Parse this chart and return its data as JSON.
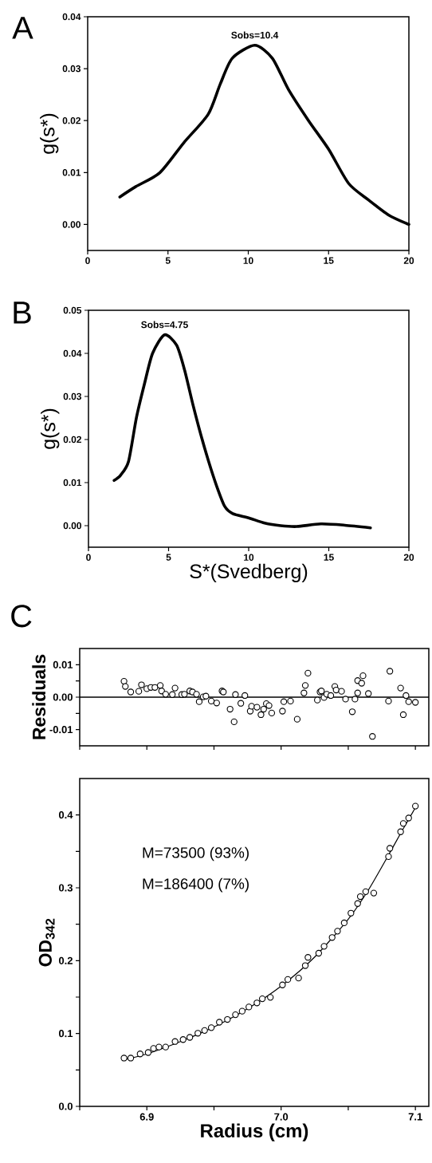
{
  "chart_data": [
    {
      "type": "line",
      "title": "A",
      "ylabel": "g(s*)",
      "xlim": [
        0,
        20
      ],
      "ylim": [
        -0.005,
        0.04
      ],
      "xticks": [
        0,
        5,
        10,
        15,
        20
      ],
      "yticks": [
        {
          "value": 0,
          "label": "0.00"
        },
        0.01,
        0.02,
        0.03,
        0.04
      ],
      "series": [
        {
          "color": "#000000",
          "x": [
            2,
            3,
            4.5,
            6,
            7.5,
            8.25,
            9,
            10.4,
            11.5,
            12.5,
            13.75,
            15,
            16.25,
            17.5,
            18.75,
            20
          ],
          "values": [
            0.0053,
            0.0073,
            0.01,
            0.0158,
            0.0212,
            0.027,
            0.032,
            0.0345,
            0.032,
            0.026,
            0.02,
            0.0145,
            0.0079,
            0.0047,
            0.0018,
            0.0
          ]
        }
      ],
      "annotations": [
        {
          "text": "Sobs=10.4",
          "x": 10.4,
          "y": 0.0345
        }
      ]
    },
    {
      "type": "line",
      "title": "B",
      "xlabel": "S*(Svedberg)",
      "ylabel": "g(s*)",
      "xlim": [
        0,
        20
      ],
      "ylim": [
        -0.005,
        0.05
      ],
      "xticks": [
        0,
        5,
        10,
        15,
        20
      ],
      "yticks": [
        {
          "value": 0,
          "label": "0.00"
        },
        0.01,
        0.02,
        0.03,
        0.04,
        0.05
      ],
      "series": [
        {
          "color": "#000000",
          "x": [
            1.6,
            2,
            2.5,
            3,
            3.5,
            4,
            4.75,
            5.5,
            6,
            6.5,
            7,
            7.5,
            8,
            8.5,
            9,
            10,
            11,
            12,
            13,
            14.5,
            16,
            17.6
          ],
          "values": [
            0.0105,
            0.0117,
            0.0149,
            0.0252,
            0.033,
            0.04,
            0.0443,
            0.0419,
            0.0361,
            0.0284,
            0.0213,
            0.0149,
            0.0092,
            0.0045,
            0.0028,
            0.0018,
            0.0006,
            0.0,
            -0.0002,
            0.0004,
            0.0001,
            -0.0005
          ]
        }
      ],
      "annotations": [
        {
          "text": "Sobs=4.75",
          "x": 4.75,
          "y": 0.0443
        }
      ]
    },
    {
      "type": "scatter",
      "title": "C",
      "ylabel": "Residuals",
      "marker": "circle",
      "tick_labels": "y",
      "xlim": [
        6.85,
        7.11
      ],
      "ylim": [
        -0.015,
        0.015
      ],
      "xticks": [
        6.85,
        6.9,
        6.95,
        7.0,
        7.05,
        7.1
      ],
      "yticks": [
        -0.01,
        {
          "value": -0.005,
          "label": null
        },
        {
          "value": 0,
          "label": "0.00"
        },
        {
          "value": 0.005,
          "label": null
        },
        0.01
      ],
      "ref_lines": [
        {
          "axis": "y",
          "value": 0
        }
      ],
      "series": [
        {
          "color": "#000000",
          "x": [
            6.883,
            6.884,
            6.888,
            6.894,
            6.896,
            6.9,
            6.903,
            6.906,
            6.91,
            6.911,
            6.914,
            6.919,
            6.921,
            6.926,
            6.928,
            6.932,
            6.934,
            6.937,
            6.939,
            6.942,
            6.944,
            6.948,
            6.952,
            6.956,
            6.957,
            6.962,
            6.965,
            6.966,
            6.97,
            6.973,
            6.977,
            6.978,
            6.982,
            6.985,
            6.987,
            6.989,
            6.991,
            6.993,
            7.001,
            7.002,
            7.007,
            7.012,
            7.017,
            7.018,
            7.02,
            7.027,
            7.029,
            7.03,
            7.032,
            7.034,
            7.037,
            7.04,
            7.041,
            7.045,
            7.048,
            7.053,
            7.055,
            7.057,
            7.057,
            7.06,
            7.061,
            7.065,
            7.068,
            7.081,
            7.08,
            7.089,
            7.091,
            7.093,
            7.095,
            7.1
          ],
          "values": [
            0.0049,
            0.0033,
            0.0016,
            0.0018,
            0.0038,
            0.0026,
            0.003,
            0.003,
            0.0036,
            0.0019,
            0.0009,
            0.0008,
            0.0028,
            0.0008,
            0.0009,
            0.0019,
            0.0016,
            0.0009,
            -0.0014,
            0.0001,
            0.0003,
            -0.0012,
            -0.0018,
            0.0019,
            0.0016,
            -0.0037,
            -0.0076,
            0.0008,
            -0.0019,
            0.0005,
            -0.0043,
            -0.0028,
            -0.0031,
            -0.0054,
            -0.0037,
            -0.002,
            -0.0026,
            -0.0049,
            -0.0043,
            -0.0014,
            -0.0012,
            -0.0068,
            0.0013,
            0.0036,
            0.0074,
            -0.0009,
            0.0016,
            0.0019,
            -0.0001,
            0.0009,
            0.0005,
            0.0033,
            0.0022,
            0.0018,
            -0.0006,
            -0.0045,
            -0.0006,
            0.0013,
            0.0051,
            0.0043,
            0.0066,
            0.0011,
            -0.0121,
            0.008,
            -0.0012,
            0.0028,
            -0.0054,
            0.0005,
            -0.0014,
            -0.0016
          ]
        }
      ]
    },
    {
      "type": "scatter",
      "xlabel": "Radius (cm)",
      "ylabel": "OD$_{342}$",
      "marker": "circle",
      "xlim": [
        6.85,
        7.11
      ],
      "ylim": [
        0,
        0.45
      ],
      "xticks": [
        {
          "value": 6.85,
          "label": null
        },
        6.9,
        {
          "value": 6.95,
          "label": null
        },
        {
          "value": 7.0,
          "label": "7.0"
        },
        {
          "value": 7.05,
          "label": null
        },
        7.1
      ],
      "yticks": [
        {
          "value": 0,
          "label": "0.0"
        },
        {
          "value": 0.05,
          "label": null
        },
        0.1,
        {
          "value": 0.15,
          "label": null
        },
        0.2,
        {
          "value": 0.25,
          "label": null
        },
        0.3,
        {
          "value": 0.35,
          "label": null
        },
        0.4
      ],
      "annotations": [
        "M=73500 (93%)",
        "M=186400 (7%)"
      ],
      "series": [
        {
          "color": "#000000",
          "x": [
            6.883,
            6.888,
            6.895,
            6.901,
            6.905,
            6.909,
            6.914,
            6.921,
            6.927,
            6.932,
            6.938,
            6.943,
            6.948,
            6.954,
            6.96,
            6.966,
            6.971,
            6.976,
            6.982,
            6.986,
            6.992,
            7.001,
            7.005,
            7.013,
            7.018,
            7.02,
            7.028,
            7.032,
            7.038,
            7.042,
            7.047,
            7.052,
            7.057,
            7.059,
            7.063,
            7.069,
            7.08,
            7.081,
            7.089,
            7.091,
            7.095,
            7.1
          ],
          "values": [
            0.0663,
            0.0663,
            0.072,
            0.0739,
            0.0795,
            0.0814,
            0.0814,
            0.089,
            0.0917,
            0.0947,
            0.1004,
            0.1042,
            0.108,
            0.1155,
            0.1193,
            0.1258,
            0.1307,
            0.1364,
            0.142,
            0.1477,
            0.1496,
            0.1667,
            0.1742,
            0.1761,
            0.1932,
            0.2045,
            0.2102,
            0.2197,
            0.2318,
            0.2405,
            0.2519,
            0.2652,
            0.2784,
            0.2879,
            0.2947,
            0.2928,
            0.3428,
            0.3542,
            0.3769,
            0.3883,
            0.3958,
            0.4121
          ]
        },
        {
          "type": "line",
          "marker": "none",
          "color": "#000000",
          "x": [
            6.883,
            6.9,
            6.925,
            6.95,
            6.975,
            7.0,
            7.025,
            7.05,
            7.065,
            7.08,
            7.09,
            7.1
          ],
          "values": [
            0.064,
            0.072,
            0.089,
            0.109,
            0.134,
            0.165,
            0.205,
            0.257,
            0.297,
            0.345,
            0.378,
            0.41
          ]
        }
      ]
    }
  ]
}
